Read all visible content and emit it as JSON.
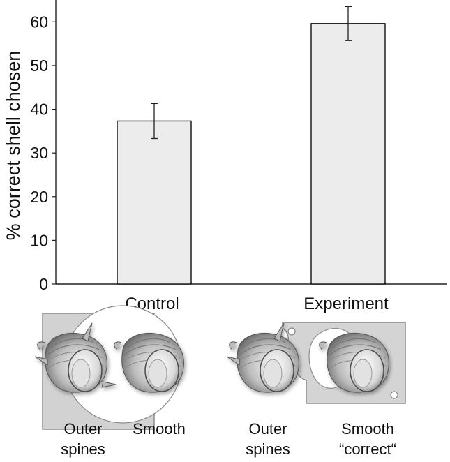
{
  "chart_data": {
    "type": "bar",
    "categories": [
      "Control",
      "Experiment"
    ],
    "values": [
      37.3,
      59.6
    ],
    "errors": [
      4.0,
      3.9
    ],
    "ylabel": "% correct shell chosen",
    "xlabel": "",
    "ylim": [
      0,
      65
    ],
    "yticks": [
      0,
      10,
      20,
      30,
      40,
      50,
      60
    ],
    "bar_color": "#ececec",
    "edge_color": "#111111"
  },
  "illustrations": {
    "control": {
      "left_label": [
        "Outer",
        "spines"
      ],
      "right_label": [
        "Smooth"
      ]
    },
    "experiment": {
      "left_label": [
        "Outer",
        "spines"
      ],
      "right_label": [
        "Smooth",
        "“correct“"
      ]
    }
  }
}
